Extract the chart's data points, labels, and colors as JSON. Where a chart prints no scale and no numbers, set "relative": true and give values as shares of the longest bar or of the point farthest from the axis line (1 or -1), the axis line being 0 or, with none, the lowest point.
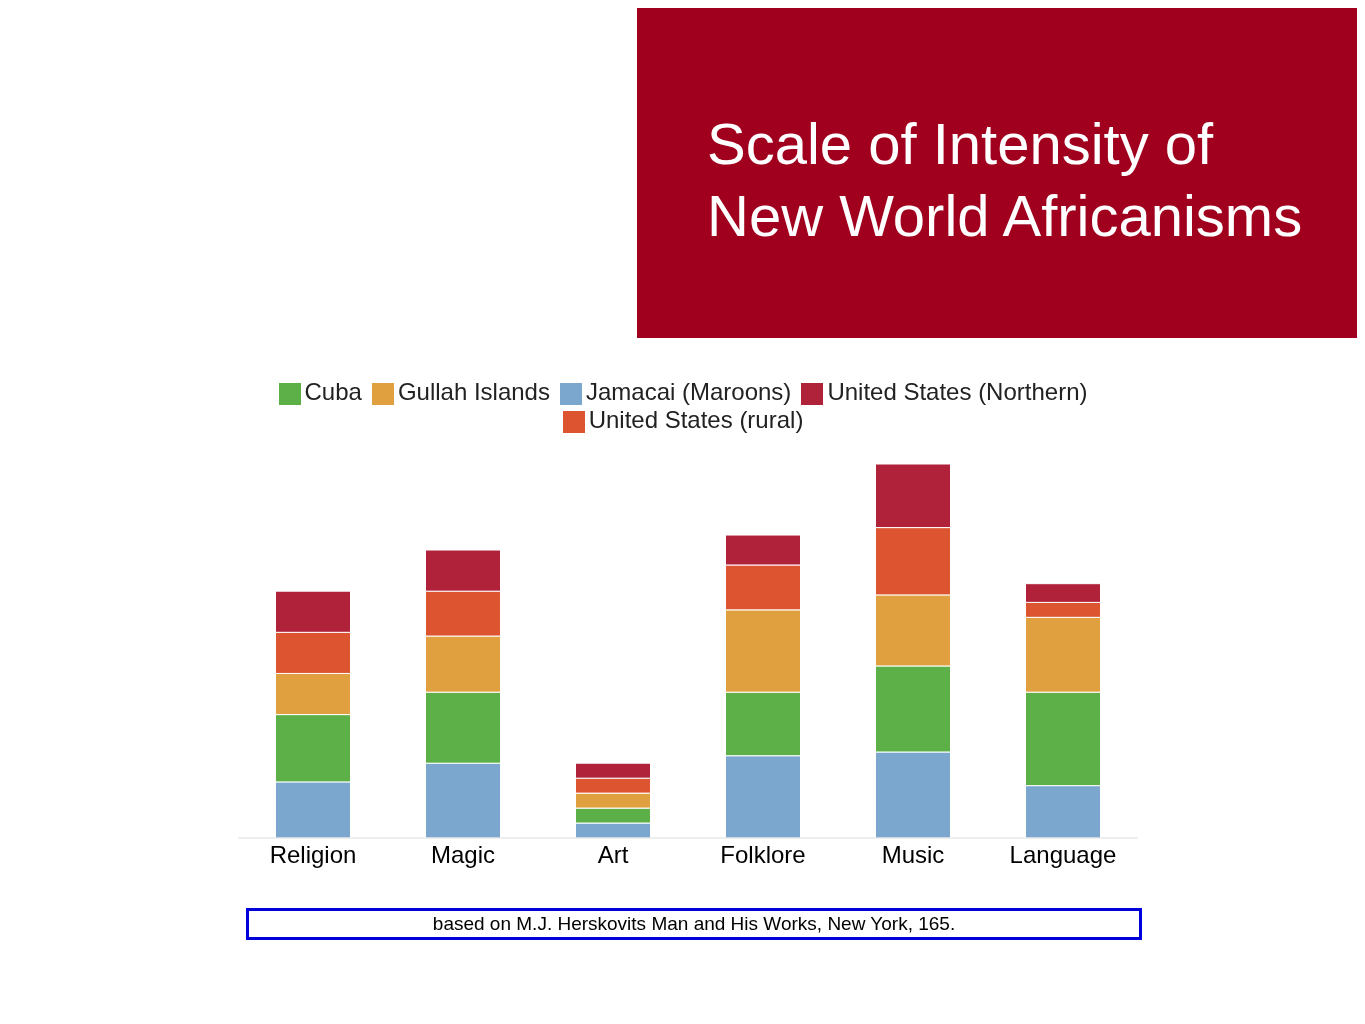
{
  "chart_data": {
    "type": "bar",
    "title": "Scale of Intensity of New World Africanisms",
    "stacked": true,
    "relative": true,
    "legend": "top",
    "grid": false,
    "categories": [
      "Religion",
      "Magic",
      "Art",
      "Folklore",
      "Music",
      "Language"
    ],
    "series": [
      {
        "name": "Jamacai (Maroons)",
        "color": "#7ba7cf",
        "values": [
          0.15,
          0.2,
          0.04,
          0.22,
          0.23,
          0.14
        ]
      },
      {
        "name": "Cuba",
        "color": "#5db048",
        "values": [
          0.18,
          0.19,
          0.04,
          0.17,
          0.23,
          0.25
        ]
      },
      {
        "name": "Gullah Islands",
        "color": "#e0a040",
        "values": [
          0.11,
          0.15,
          0.04,
          0.22,
          0.19,
          0.2
        ]
      },
      {
        "name": "United States (rural)",
        "color": "#dc5530",
        "values": [
          0.11,
          0.12,
          0.04,
          0.12,
          0.18,
          0.04
        ]
      },
      {
        "name": "United States (Northern)",
        "color": "#b0213a",
        "values": [
          0.11,
          0.11,
          0.04,
          0.08,
          0.17,
          0.05
        ]
      }
    ],
    "annotations": [
      "based on M.J. Herskovits Man and His Works, New York, 165."
    ]
  }
}
